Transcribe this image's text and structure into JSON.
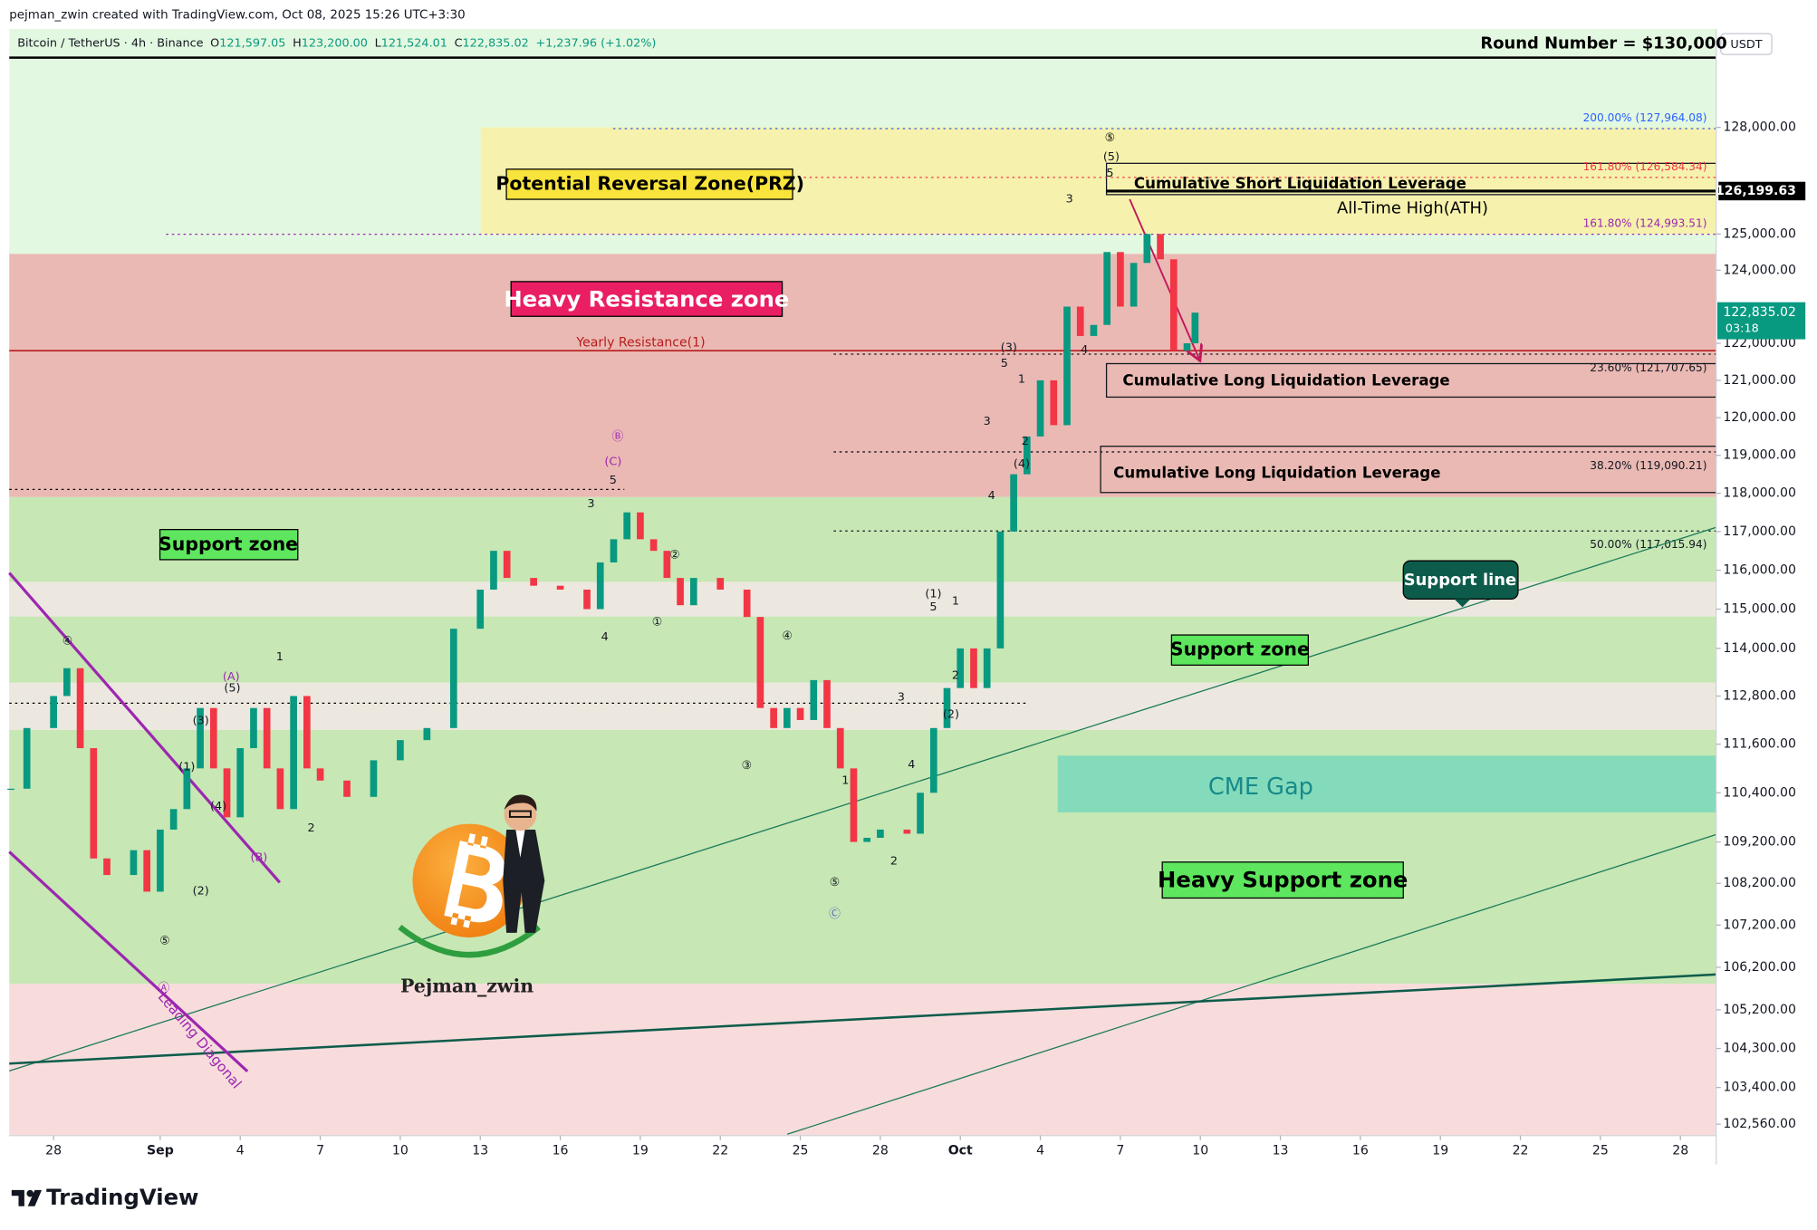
{
  "header": {
    "byline": "pejman_zwin created with TradingView.com, Oct 08, 2025 15:26 UTC+3:30",
    "symbol": "Bitcoin / TetherUS · 4h · Binance",
    "ohlc": [
      {
        "key": "O",
        "value": "121,597.05"
      },
      {
        "key": "H",
        "value": "123,200.00"
      },
      {
        "key": "L",
        "value": "121,524.01"
      },
      {
        "key": "C",
        "value": "122,835.02"
      }
    ],
    "change": "+1,237.96 (+1.02%)",
    "currency": "USDT",
    "logo": "TradingView"
  },
  "annotations": {
    "prz": "Potential Reversal Zone(PRZ)",
    "resistance": "Heavy Resistance zone",
    "support_1": "Support zone",
    "support_2": "Support zone",
    "heavy_support": "Heavy Support zone",
    "cme_gap": "CME Gap",
    "support_line": "Support line",
    "short_liq": "Cumulative Short Liquidation Leverage",
    "long_liq_1": "Cumulative Long Liquidation Leverage",
    "long_liq_2": "Cumulative Long Liquidation Leverage",
    "ath": "All-Time High(ATH)",
    "leading_diagonal": "Leading Diagonal",
    "author": "Pejman_zwin"
  },
  "chart_data": {
    "type": "candlestick",
    "log_scale": true,
    "grid": false,
    "up_color": "#089981",
    "down_color": "#f23645",
    "ylim": [
      102300,
      130830
    ],
    "xlim": [
      -5.66,
      58.34
    ],
    "yticks": [
      {
        "value": 128000,
        "label": "128,000.00"
      },
      {
        "value": 125000,
        "label": "125,000.00"
      },
      {
        "value": 124000,
        "label": "124,000.00"
      },
      {
        "value": 122000,
        "label": "122,000.00"
      },
      {
        "value": 121000,
        "label": "121,000.00"
      },
      {
        "value": 120000,
        "label": "120,000.00"
      },
      {
        "value": 119000,
        "label": "119,000.00"
      },
      {
        "value": 118000,
        "label": "118,000.00"
      },
      {
        "value": 117000,
        "label": "117,000.00"
      },
      {
        "value": 116000,
        "label": "116,000.00"
      },
      {
        "value": 115000,
        "label": "115,000.00"
      },
      {
        "value": 114000,
        "label": "114,000.00"
      },
      {
        "value": 112800,
        "label": "112,800.00"
      },
      {
        "value": 111600,
        "label": "111,600.00"
      },
      {
        "value": 110400,
        "label": "110,400.00"
      },
      {
        "value": 109200,
        "label": "109,200.00"
      },
      {
        "value": 108200,
        "label": "108,200.00"
      },
      {
        "value": 107200,
        "label": "107,200.00"
      },
      {
        "value": 106200,
        "label": "106,200.00"
      },
      {
        "value": 105200,
        "label": "105,200.00"
      },
      {
        "value": 104300,
        "label": "104,300.00"
      },
      {
        "value": 103400,
        "label": "103,400.00"
      },
      {
        "value": 102560,
        "label": "102,560.00"
      }
    ],
    "xticks": [
      {
        "value": -4,
        "label": "28"
      },
      {
        "value": 0,
        "label": "Sep"
      },
      {
        "value": 3,
        "label": "4"
      },
      {
        "value": 6,
        "label": "7"
      },
      {
        "value": 9,
        "label": "10"
      },
      {
        "value": 12,
        "label": "13"
      },
      {
        "value": 15,
        "label": "16"
      },
      {
        "value": 18,
        "label": "19"
      },
      {
        "value": 21,
        "label": "22"
      },
      {
        "value": 24,
        "label": "25"
      },
      {
        "value": 27,
        "label": "28"
      },
      {
        "value": 30,
        "label": "Oct"
      },
      {
        "value": 33,
        "label": "4"
      },
      {
        "value": 36,
        "label": "7"
      },
      {
        "value": 39,
        "label": "10"
      },
      {
        "value": 42,
        "label": "13"
      },
      {
        "value": 45,
        "label": "16"
      },
      {
        "value": 48,
        "label": "19"
      },
      {
        "value": 51,
        "label": "22"
      },
      {
        "value": 54,
        "label": "25"
      },
      {
        "value": 57,
        "label": "28"
      }
    ],
    "x": [
      -5.6,
      -5,
      -4,
      -3.5,
      -3,
      -2.5,
      -2,
      -1,
      -0.5,
      0,
      0.5,
      1,
      1.5,
      2,
      2.5,
      3,
      3.5,
      4,
      4.5,
      5,
      5.5,
      6,
      7,
      8,
      9,
      10,
      11,
      12,
      12.5,
      13,
      14,
      15,
      16,
      16.5,
      17,
      17.5,
      18,
      18.5,
      19,
      19.5,
      20,
      21,
      22,
      22.5,
      23,
      23.5,
      24,
      24.5,
      25,
      25.5,
      26,
      26.5,
      27,
      28,
      28.5,
      29,
      29.5,
      30,
      30.5,
      31,
      31.5,
      32,
      32.5,
      33,
      33.5,
      34,
      34.5,
      35,
      35.5,
      36,
      36.5,
      37,
      37.5,
      38,
      38.5,
      38.8
    ],
    "values": [
      110500,
      112000,
      112800,
      113500,
      111500,
      108800,
      108400,
      109000,
      108000,
      109500,
      110000,
      111000,
      112500,
      111000,
      109800,
      111500,
      112500,
      111000,
      110000,
      112800,
      111000,
      110700,
      110300,
      111200,
      111700,
      112000,
      114500,
      115500,
      116500,
      115800,
      115600,
      115500,
      115000,
      116200,
      116800,
      117500,
      116800,
      116500,
      115800,
      115100,
      115800,
      115500,
      114800,
      112500,
      112000,
      112500,
      112200,
      113200,
      112000,
      111000,
      109200,
      109300,
      109500,
      109400,
      110400,
      112000,
      113000,
      114000,
      113000,
      114000,
      117000,
      118500,
      119500,
      121000,
      119800,
      123000,
      122200,
      122500,
      124500,
      123000,
      124200,
      125000,
      124300,
      121800,
      122000,
      122835.02
    ],
    "last_price_label": "122,835.02",
    "countdown": "03:18",
    "last_price_color": "#089981",
    "zones": [
      {
        "ylim": [
          124450,
          130830
        ],
        "color": "#e3f8e0"
      },
      {
        "ylim": [
          117900,
          124450
        ],
        "color": "#eab9b3"
      },
      {
        "ylim": [
          105810,
          117900
        ],
        "color": "#c7e7b4"
      },
      {
        "ylim": [
          114810,
          115700
        ],
        "color": "#ece8df"
      },
      {
        "ylim": [
          111950,
          113140
        ],
        "color": "#ece8df"
      },
      {
        "ylim": [
          102300,
          105810
        ],
        "color": "#f8dcdc"
      },
      {
        "ylim": [
          125000,
          128000
        ],
        "xlim": [
          12.02,
          58.34
        ],
        "color": "#f6f2ad"
      },
      {
        "ylim": [
          109920,
          111315
        ],
        "xlim": [
          33.65,
          58.34
        ],
        "color": "#84dbbb"
      }
    ],
    "boxes": [
      {
        "ylim": [
          126100,
          126980
        ],
        "xlim": [
          35.48,
          58.34
        ],
        "color": "#131722"
      },
      {
        "ylim": [
          120550,
          121450
        ],
        "xlim": [
          35.48,
          58.34
        ],
        "color": "#131722"
      },
      {
        "ylim": [
          118020,
          119240
        ],
        "xlim": [
          35.26,
          58.34
        ],
        "color": "#131722"
      }
    ],
    "levels": [
      {
        "value": 130000,
        "label": "Round Number = $130,000",
        "color": "#000000",
        "width": 2
      },
      {
        "value": 121800,
        "label": "Yearly Resistance(1)",
        "color": "#b71c1c",
        "width": 1.2
      },
      {
        "value": 126199.63,
        "value_label": "126,199.63",
        "color": "#000000",
        "width": 2.5,
        "xlim": [
          35.48,
          58.34
        ]
      },
      {
        "value": 118100,
        "color": "#000000",
        "width": 1,
        "style": "dotted",
        "xlim": [
          -5.66,
          17.4
        ]
      },
      {
        "value": 112620,
        "color": "#000000",
        "width": 1,
        "style": "dotted",
        "xlim": [
          -5.66,
          32.48
        ]
      }
    ],
    "fib_levels": [
      {
        "label": "200.00% (127,964.08)",
        "value": 127964.08,
        "color": "#2962ff",
        "xlim": [
          16.98,
          58.34
        ]
      },
      {
        "label": "161.80% (126,584.34)",
        "value": 126584.34,
        "color": "#f23645",
        "xlim": [
          20.0,
          58.34
        ]
      },
      {
        "label": "161.80% (124,993.51)",
        "value": 124993.51,
        "color": "#9c27b0",
        "xlim": [
          0.22,
          58.34
        ]
      },
      {
        "label": "23.60% (121,707.65)",
        "value": 121707.65,
        "color": "#131722",
        "xlim": [
          25.25,
          58.34
        ]
      },
      {
        "label": "38.20% (119,090.21)",
        "value": 119090.21,
        "color": "#131722",
        "xlim": [
          25.25,
          58.34
        ]
      },
      {
        "label": "50.00% (117,015.94)",
        "value": 117015.94,
        "color": "#131722",
        "xlim": [
          25.25,
          58.34
        ]
      }
    ],
    "trendlines": [
      {
        "x": [
          -5.66,
          58.34
        ],
        "y": [
          103780,
          117110
        ],
        "color": "#1b7a5a",
        "width": 1
      },
      {
        "x": [
          23.51,
          58.34
        ],
        "y": [
          102330,
          109380
        ],
        "color": "#1b7a5a",
        "width": 1
      },
      {
        "x": [
          -5.66,
          58.34
        ],
        "y": [
          103950,
          106030
        ],
        "color": "#0d5c4b",
        "width": 2
      },
      {
        "x": [
          -5.66,
          4.48
        ],
        "y": [
          115930,
          108220
        ],
        "color": "#9c27b0",
        "width": 2.5
      },
      {
        "x": [
          -5.66,
          3.27
        ],
        "y": [
          108960,
          103770
        ],
        "color": "#9c27b0",
        "width": 2.5
      },
      {
        "x": [
          36.35,
          38.96
        ],
        "y": [
          125970,
          121570
        ],
        "color": "#c2185b",
        "width": 1.5,
        "arrow": true
      }
    ],
    "wave_labels": [
      {
        "text": "④",
        "x": -3.48,
        "y": 114180,
        "color": "#131722"
      },
      {
        "text": "⑤",
        "x": 0.17,
        "y": 106820,
        "color": "#131722"
      },
      {
        "text": "Ⓐ",
        "x": 0.13,
        "y": 105700,
        "color": "#9c27b0"
      },
      {
        "text": "(A)",
        "x": 2.66,
        "y": 113280,
        "color": "#9c27b0"
      },
      {
        "text": "(5)",
        "x": 2.7,
        "y": 112990,
        "color": "#131722"
      },
      {
        "text": "(3)",
        "x": 1.52,
        "y": 112180,
        "color": "#131722"
      },
      {
        "text": "(1)",
        "x": 1.0,
        "y": 111030,
        "color": "#131722"
      },
      {
        "text": "(4)",
        "x": 2.18,
        "y": 110060,
        "color": "#131722"
      },
      {
        "text": "(2)",
        "x": 1.52,
        "y": 108010,
        "color": "#131722"
      },
      {
        "text": "(B)",
        "x": 3.7,
        "y": 108820,
        "color": "#9c27b0"
      },
      {
        "text": "1",
        "x": 4.48,
        "y": 113780,
        "color": "#131722"
      },
      {
        "text": "2",
        "x": 5.66,
        "y": 109530,
        "color": "#131722"
      },
      {
        "text": "Ⓑ",
        "x": 17.15,
        "y": 119490,
        "color": "#9c27b0"
      },
      {
        "text": "(C)",
        "x": 16.98,
        "y": 118820,
        "color": "#9c27b0"
      },
      {
        "text": "5",
        "x": 16.98,
        "y": 118330,
        "color": "#131722"
      },
      {
        "text": "3",
        "x": 16.15,
        "y": 117720,
        "color": "#131722"
      },
      {
        "text": "4",
        "x": 16.67,
        "y": 114280,
        "color": "#131722"
      },
      {
        "text": "②",
        "x": 19.29,
        "y": 116390,
        "color": "#131722"
      },
      {
        "text": "①",
        "x": 18.63,
        "y": 114670,
        "color": "#131722"
      },
      {
        "text": "③",
        "x": 21.99,
        "y": 111060,
        "color": "#131722"
      },
      {
        "text": "④",
        "x": 23.51,
        "y": 114310,
        "color": "#131722"
      },
      {
        "text": "⑤",
        "x": 25.29,
        "y": 108220,
        "color": "#131722"
      },
      {
        "text": "Ⓒ",
        "x": 25.29,
        "y": 107460,
        "color": "#5c6bc0"
      },
      {
        "text": "1",
        "x": 25.69,
        "y": 110690,
        "color": "#131722"
      },
      {
        "text": "2",
        "x": 27.51,
        "y": 108730,
        "color": "#131722"
      },
      {
        "text": "3",
        "x": 27.78,
        "y": 112760,
        "color": "#131722"
      },
      {
        "text": "4",
        "x": 28.17,
        "y": 111090,
        "color": "#131722"
      },
      {
        "text": "(1)",
        "x": 28.99,
        "y": 115380,
        "color": "#131722"
      },
      {
        "text": "5",
        "x": 28.99,
        "y": 115050,
        "color": "#131722"
      },
      {
        "text": "1",
        "x": 29.82,
        "y": 115200,
        "color": "#131722"
      },
      {
        "text": "2",
        "x": 29.82,
        "y": 113310,
        "color": "#131722"
      },
      {
        "text": "(2)",
        "x": 29.65,
        "y": 112330,
        "color": "#131722"
      },
      {
        "text": "4",
        "x": 31.17,
        "y": 117930,
        "color": "#131722"
      },
      {
        "text": "(4)",
        "x": 32.3,
        "y": 118760,
        "color": "#131722"
      },
      {
        "text": "3",
        "x": 31.0,
        "y": 119890,
        "color": "#131722"
      },
      {
        "text": "2",
        "x": 32.43,
        "y": 119370,
        "color": "#131722"
      },
      {
        "text": "1",
        "x": 32.3,
        "y": 121020,
        "color": "#131722"
      },
      {
        "text": "5",
        "x": 31.65,
        "y": 121450,
        "color": "#131722"
      },
      {
        "text": "(3)",
        "x": 31.82,
        "y": 121880,
        "color": "#131722"
      },
      {
        "text": "3",
        "x": 34.09,
        "y": 125970,
        "color": "#131722"
      },
      {
        "text": "4",
        "x": 34.65,
        "y": 121820,
        "color": "#131722"
      },
      {
        "text": "⑤",
        "x": 35.61,
        "y": 127700,
        "color": "#000000"
      },
      {
        "text": "(5)",
        "x": 35.66,
        "y": 127150,
        "color": "#131722"
      },
      {
        "text": "5",
        "x": 35.61,
        "y": 126690,
        "color": "#131722"
      }
    ]
  }
}
